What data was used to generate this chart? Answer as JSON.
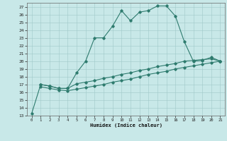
{
  "xlabel": "Humidex (Indice chaleur)",
  "bg_color": "#c8e8e8",
  "line_color": "#2e7b6e",
  "grid_color": "#a0c8c8",
  "xlim": [
    -0.5,
    21.5
  ],
  "ylim": [
    13,
    27.5
  ],
  "xticks": [
    0,
    1,
    2,
    3,
    4,
    5,
    6,
    7,
    8,
    9,
    10,
    11,
    12,
    13,
    14,
    15,
    16,
    17,
    18,
    19,
    20,
    21
  ],
  "yticks": [
    13,
    14,
    15,
    16,
    17,
    18,
    19,
    20,
    21,
    22,
    23,
    24,
    25,
    26,
    27
  ],
  "line1_x": [
    0,
    1,
    2,
    3,
    4,
    5,
    6,
    7,
    8,
    9,
    10,
    11,
    12,
    13,
    14,
    15,
    16,
    17,
    18,
    19,
    20,
    21
  ],
  "line1_y": [
    13.3,
    17.0,
    16.8,
    16.5,
    16.5,
    18.5,
    20.0,
    23.0,
    23.0,
    24.5,
    26.5,
    25.2,
    26.3,
    26.5,
    27.1,
    27.1,
    25.8,
    22.5,
    20.0,
    20.1,
    20.5,
    20.0
  ],
  "line2_x": [
    1,
    2,
    3,
    4,
    5,
    6,
    7,
    8,
    9,
    10,
    11,
    12,
    13,
    14,
    15,
    16,
    17,
    18,
    19,
    20,
    21
  ],
  "line2_y": [
    17.0,
    16.8,
    16.5,
    16.5,
    17.1,
    17.3,
    17.5,
    17.8,
    18.0,
    18.3,
    18.5,
    18.8,
    19.0,
    19.3,
    19.5,
    19.7,
    20.0,
    20.1,
    20.2,
    20.3,
    20.0
  ],
  "line3_x": [
    1,
    2,
    3,
    4,
    5,
    6,
    7,
    8,
    9,
    10,
    11,
    12,
    13,
    14,
    15,
    16,
    17,
    18,
    19,
    20,
    21
  ],
  "line3_y": [
    16.7,
    16.5,
    16.3,
    16.2,
    16.4,
    16.6,
    16.8,
    17.0,
    17.3,
    17.5,
    17.7,
    18.0,
    18.3,
    18.5,
    18.7,
    19.0,
    19.2,
    19.4,
    19.6,
    19.8,
    20.0
  ]
}
